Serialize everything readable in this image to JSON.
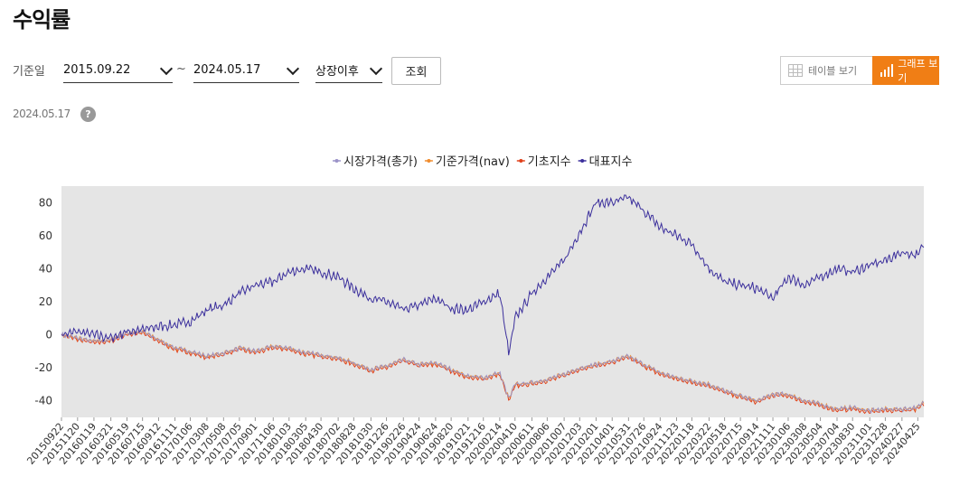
{
  "header": {
    "title": "수익률"
  },
  "filters": {
    "label": "기준일",
    "start_date": "2015.09.22",
    "separator": "~",
    "end_date": "2024.05.17",
    "period": "상장이후",
    "search_label": "조회"
  },
  "view_toggle": {
    "table_label": "테이블 보기",
    "graph_label": "그래프 보기",
    "active": "graph"
  },
  "as_of": {
    "date": "2024.05.17",
    "help_symbol": "?"
  },
  "colors": {
    "accent": "#f07e15",
    "market_price": "#9b93c8",
    "nav": "#f08c2e",
    "underlying_index": "#e0401a",
    "benchmark_index": "#3b2f9c",
    "plot_bg": "#e5e5e5"
  },
  "chart_data": {
    "type": "line",
    "title": "",
    "xlabel": "",
    "ylabel": "",
    "ylim": [
      -50,
      90
    ],
    "yticks": [
      -40,
      -20,
      0,
      20,
      40,
      60,
      80
    ],
    "grid": false,
    "legend_position": "top-center",
    "x_tick_labels": [
      "20150922",
      "20151120",
      "20160119",
      "20160321",
      "20160519",
      "20160715",
      "20160912",
      "20161111",
      "20170106",
      "20170308",
      "20170508",
      "20170705",
      "20170901",
      "20171106",
      "20180103",
      "20180305",
      "20180430",
      "20180702",
      "20180828",
      "20181030",
      "20181226",
      "20190226",
      "20190424",
      "20190624",
      "20190820",
      "20191021",
      "20191216",
      "20200214",
      "20200410",
      "20200611",
      "20200806",
      "20201007",
      "20201203",
      "20210201",
      "20210401",
      "20210531",
      "20210726",
      "20210924",
      "20211123",
      "20220118",
      "20220322",
      "20220518",
      "20220715",
      "20220914",
      "20221111",
      "20230106",
      "20230308",
      "20230504",
      "20230704",
      "20230830",
      "20231101",
      "20231228",
      "20240227",
      "20240425"
    ],
    "x": [
      "2015-09-22",
      "2015-11-20",
      "2016-01-19",
      "2016-03-21",
      "2016-05-19",
      "2016-07-15",
      "2016-09-12",
      "2016-11-11",
      "2017-01-06",
      "2017-03-08",
      "2017-05-08",
      "2017-07-05",
      "2017-09-01",
      "2017-11-06",
      "2018-01-03",
      "2018-03-05",
      "2018-04-30",
      "2018-07-02",
      "2018-08-28",
      "2018-10-30",
      "2018-12-26",
      "2019-02-26",
      "2019-04-24",
      "2019-06-24",
      "2019-08-20",
      "2019-10-21",
      "2019-12-16",
      "2020-02-14",
      "2020-03-19",
      "2020-04-10",
      "2020-06-11",
      "2020-08-06",
      "2020-10-07",
      "2020-12-03",
      "2021-02-01",
      "2021-04-01",
      "2021-05-31",
      "2021-07-26",
      "2021-09-24",
      "2021-11-23",
      "2022-01-18",
      "2022-03-22",
      "2022-05-18",
      "2022-07-15",
      "2022-09-14",
      "2022-11-11",
      "2023-01-06",
      "2023-03-08",
      "2023-05-04",
      "2023-07-04",
      "2023-08-30",
      "2023-11-01",
      "2023-12-28",
      "2024-02-27",
      "2024-04-25",
      "2024-05-17"
    ],
    "series": [
      {
        "name": "시장가격(총가)",
        "values": [
          0,
          -2,
          -4,
          -3,
          1,
          2,
          -3,
          -8,
          -10,
          -13,
          -11,
          -8,
          -10,
          -7,
          -8,
          -11,
          -12,
          -14,
          -17,
          -21,
          -19,
          -15,
          -18,
          -17,
          -21,
          -25,
          -26,
          -23,
          -39,
          -30,
          -29,
          -27,
          -24,
          -20,
          -18,
          -16,
          -13,
          -18,
          -23,
          -26,
          -28,
          -30,
          -34,
          -37,
          -40,
          -36,
          -36,
          -40,
          -42,
          -45,
          -44,
          -46,
          -45,
          -45,
          -44,
          -41
        ]
      },
      {
        "name": "기준가격(nav)",
        "values": [
          0,
          -2,
          -4,
          -3,
          1,
          2,
          -3,
          -8,
          -10,
          -13,
          -11,
          -8,
          -10,
          -7,
          -8,
          -11,
          -12,
          -14,
          -17,
          -21,
          -19,
          -15,
          -18,
          -17,
          -21,
          -25,
          -26,
          -23,
          -39,
          -30,
          -29,
          -27,
          -24,
          -20,
          -18,
          -16,
          -13,
          -18,
          -23,
          -26,
          -28,
          -30,
          -34,
          -37,
          -40,
          -36,
          -36,
          -40,
          -42,
          -45,
          -44,
          -46,
          -45,
          -45,
          -44,
          -41
        ]
      },
      {
        "name": "기초지수",
        "values": [
          0,
          -3,
          -5,
          -4,
          0,
          1,
          -4,
          -9,
          -11,
          -14,
          -12,
          -9,
          -11,
          -8,
          -9,
          -12,
          -13,
          -15,
          -18,
          -22,
          -20,
          -16,
          -19,
          -18,
          -22,
          -26,
          -27,
          -24,
          -40,
          -31,
          -30,
          -28,
          -25,
          -21,
          -19,
          -17,
          -14,
          -19,
          -24,
          -27,
          -29,
          -31,
          -35,
          -38,
          -41,
          -37,
          -37,
          -41,
          -43,
          -46,
          -45,
          -47,
          -46,
          -46,
          -45,
          -42
        ]
      },
      {
        "name": "대표지수",
        "values": [
          0,
          2,
          0,
          -2,
          2,
          3,
          5,
          6,
          8,
          15,
          18,
          25,
          30,
          32,
          38,
          40,
          38,
          35,
          28,
          22,
          20,
          15,
          18,
          22,
          16,
          15,
          20,
          25,
          -12,
          10,
          25,
          35,
          45,
          62,
          80,
          80,
          83,
          75,
          65,
          60,
          55,
          40,
          32,
          30,
          28,
          22,
          35,
          30,
          35,
          40,
          38,
          42,
          45,
          50,
          48,
          55
        ]
      }
    ]
  }
}
